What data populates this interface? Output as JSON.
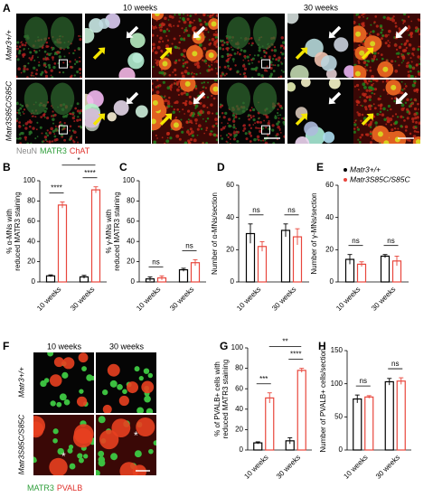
{
  "panel_labels": [
    "A",
    "B",
    "C",
    "D",
    "E",
    "F",
    "G",
    "H"
  ],
  "panel_a": {
    "columns": [
      "10 weeks",
      "30 weeks"
    ],
    "rows": [
      "Matr3+/+",
      "Matr3S85C/S85C"
    ],
    "stain_legend": [
      {
        "text": "NeuN",
        "color": "#8a8a8a"
      },
      {
        "text": "MATR3",
        "color": "#2e9e3a"
      },
      {
        "text": "ChAT",
        "color": "#e0302a"
      }
    ]
  },
  "panel_f": {
    "columns": [
      "10 weeks",
      "30 weeks"
    ],
    "rows": [
      "Matr3+/+",
      "Matr3S85C/S85C"
    ],
    "stain_legend": [
      {
        "text": "MATR3",
        "color": "#2e9e3a"
      },
      {
        "text": "PVALB",
        "color": "#e0302a"
      }
    ],
    "asterisks": [
      "*",
      "*"
    ]
  },
  "chart_data": [
    {
      "type": "bar",
      "ylabel": [
        "% α-MNs with",
        "reduced MATR3 staining"
      ],
      "categories": [
        "10 weeks",
        "30 weeks"
      ],
      "series": [
        {
          "color": "#000000",
          "values": [
            6,
            5
          ],
          "errors": [
            1,
            1.5
          ]
        },
        {
          "color": "#e8463c",
          "values": [
            76,
            91
          ],
          "errors": [
            3,
            3
          ]
        }
      ],
      "ylim": [
        0,
        100
      ],
      "yticks": [
        0,
        20,
        40,
        60,
        80,
        100
      ],
      "annotations": [
        {
          "text": "****",
          "categories": [
            0
          ]
        },
        {
          "text": "****",
          "categories": [
            1
          ]
        },
        {
          "text": "*",
          "categories": [
            0,
            1
          ]
        }
      ]
    },
    {
      "type": "bar",
      "ylabel": [
        "% γ-MNs with",
        "reduced MATR3 staining"
      ],
      "categories": [
        "10 weeks",
        "30 weeks"
      ],
      "series": [
        {
          "color": "#000000",
          "values": [
            3,
            12
          ],
          "errors": [
            2,
            1.5
          ]
        },
        {
          "color": "#e8463c",
          "values": [
            4,
            19
          ],
          "errors": [
            2,
            3
          ]
        }
      ],
      "ylim": [
        0,
        100
      ],
      "yticks": [
        0,
        20,
        40,
        60,
        80,
        100
      ],
      "annotations": [
        {
          "text": "ns",
          "categories": [
            0
          ]
        },
        {
          "text": "ns",
          "categories": [
            1
          ]
        }
      ]
    },
    {
      "type": "bar",
      "ylabel": [
        "Number of α-MNs/section"
      ],
      "categories": [
        "10 weeks",
        "30 weeks"
      ],
      "series": [
        {
          "color": "#000000",
          "values": [
            30,
            32
          ],
          "errors": [
            6,
            4
          ]
        },
        {
          "color": "#e8463c",
          "values": [
            22,
            28
          ],
          "errors": [
            3,
            5
          ]
        }
      ],
      "ylim": [
        0,
        60
      ],
      "yticks": [
        0,
        20,
        40,
        60
      ],
      "annotations": [
        {
          "text": "ns",
          "categories": [
            0
          ]
        },
        {
          "text": "ns",
          "categories": [
            1
          ]
        }
      ]
    },
    {
      "type": "bar",
      "ylabel": [
        "Number of γ-MNs/section"
      ],
      "categories": [
        "10 weeks",
        "30 weeks"
      ],
      "series": [
        {
          "name": "Matr3+/+",
          "color": "#000000",
          "values": [
            14,
            16
          ],
          "errors": [
            3,
            1
          ]
        },
        {
          "name": "Matr3S85C/S85C",
          "color": "#e8463c",
          "values": [
            11,
            13
          ],
          "errors": [
            1.5,
            3
          ]
        }
      ],
      "ylim": [
        0,
        60
      ],
      "yticks": [
        0,
        20,
        40,
        60
      ],
      "legend": "top-right",
      "annotations": [
        {
          "text": "ns",
          "categories": [
            0
          ]
        },
        {
          "text": "ns",
          "categories": [
            1
          ]
        }
      ]
    },
    {
      "type": "bar",
      "ylabel": [
        "% of PVALB+ cells with",
        "reduced MATR3 staining"
      ],
      "categories": [
        "10 weeks",
        "30 weeks"
      ],
      "series": [
        {
          "color": "#000000",
          "values": [
            7,
            9
          ],
          "errors": [
            1,
            3
          ]
        },
        {
          "color": "#e8463c",
          "values": [
            51,
            78
          ],
          "errors": [
            5,
            2
          ]
        }
      ],
      "ylim": [
        0,
        100
      ],
      "yticks": [
        0,
        20,
        40,
        60,
        80,
        100
      ],
      "annotations": [
        {
          "text": "***",
          "categories": [
            0
          ]
        },
        {
          "text": "****",
          "categories": [
            1
          ]
        },
        {
          "text": "**",
          "categories": [
            0,
            1
          ]
        }
      ]
    },
    {
      "type": "bar",
      "ylabel": [
        "Number of PVALB+ cells/section"
      ],
      "categories": [
        "10 weeks",
        "30 weeks"
      ],
      "series": [
        {
          "color": "#000000",
          "values": [
            77,
            103
          ],
          "errors": [
            6,
            5
          ]
        },
        {
          "color": "#e8463c",
          "values": [
            80,
            104
          ],
          "errors": [
            2,
            5
          ]
        }
      ],
      "ylim": [
        0,
        150
      ],
      "yticks": [
        0,
        50,
        100,
        150
      ],
      "annotations": [
        {
          "text": "ns",
          "categories": [
            0
          ]
        },
        {
          "text": "ns",
          "categories": [
            1
          ]
        }
      ]
    }
  ]
}
